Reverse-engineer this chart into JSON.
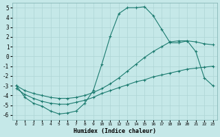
{
  "xlabel": "Humidex (Indice chaleur)",
  "xlim": [
    -0.5,
    23.5
  ],
  "ylim": [
    -6.5,
    5.5
  ],
  "xticks": [
    0,
    1,
    2,
    3,
    4,
    5,
    6,
    7,
    8,
    9,
    10,
    11,
    12,
    13,
    14,
    15,
    16,
    17,
    18,
    19,
    20,
    21,
    22,
    23
  ],
  "yticks": [
    -6,
    -5,
    -4,
    -3,
    -2,
    -1,
    0,
    1,
    2,
    3,
    4,
    5
  ],
  "bg_color": "#c5e8e8",
  "grid_color": "#aed4d4",
  "line_color": "#1a7a6e",
  "line1_x": [
    0,
    1,
    2,
    3,
    4,
    5,
    6,
    7,
    8,
    9,
    10,
    11,
    12,
    13,
    14,
    15,
    16,
    17,
    18,
    19,
    20,
    21,
    22,
    23
  ],
  "line1_y": [
    -3.0,
    -4.2,
    -4.8,
    -5.1,
    -5.6,
    -5.9,
    -5.8,
    -5.6,
    -4.8,
    -3.5,
    -0.8,
    2.1,
    4.4,
    5.0,
    5.0,
    5.1,
    4.2,
    2.8,
    1.4,
    1.4,
    1.6,
    0.5,
    -2.2,
    -3.0
  ],
  "line2_x": [
    0,
    1,
    2,
    3,
    4,
    5,
    6,
    7,
    8,
    9,
    10,
    11,
    12,
    13,
    14,
    15,
    16,
    17,
    18,
    19,
    20,
    21,
    22,
    23
  ],
  "line2_y": [
    -3.0,
    -3.5,
    -3.8,
    -4.0,
    -4.2,
    -4.3,
    -4.3,
    -4.2,
    -4.0,
    -3.7,
    -3.3,
    -2.8,
    -2.2,
    -1.5,
    -0.8,
    -0.1,
    0.5,
    1.0,
    1.5,
    1.6,
    1.6,
    1.5,
    1.3,
    1.2
  ],
  "line3_x": [
    0,
    1,
    2,
    3,
    4,
    5,
    6,
    7,
    8,
    9,
    10,
    11,
    12,
    13,
    14,
    15,
    16,
    17,
    18,
    19,
    20,
    21,
    22,
    23
  ],
  "line3_y": [
    -3.3,
    -3.9,
    -4.3,
    -4.6,
    -4.8,
    -4.9,
    -4.9,
    -4.7,
    -4.5,
    -4.2,
    -3.8,
    -3.5,
    -3.2,
    -2.9,
    -2.6,
    -2.4,
    -2.1,
    -1.9,
    -1.7,
    -1.5,
    -1.3,
    -1.2,
    -1.1,
    -1.0
  ],
  "figsize": [
    3.2,
    2.0
  ],
  "dpi": 100
}
